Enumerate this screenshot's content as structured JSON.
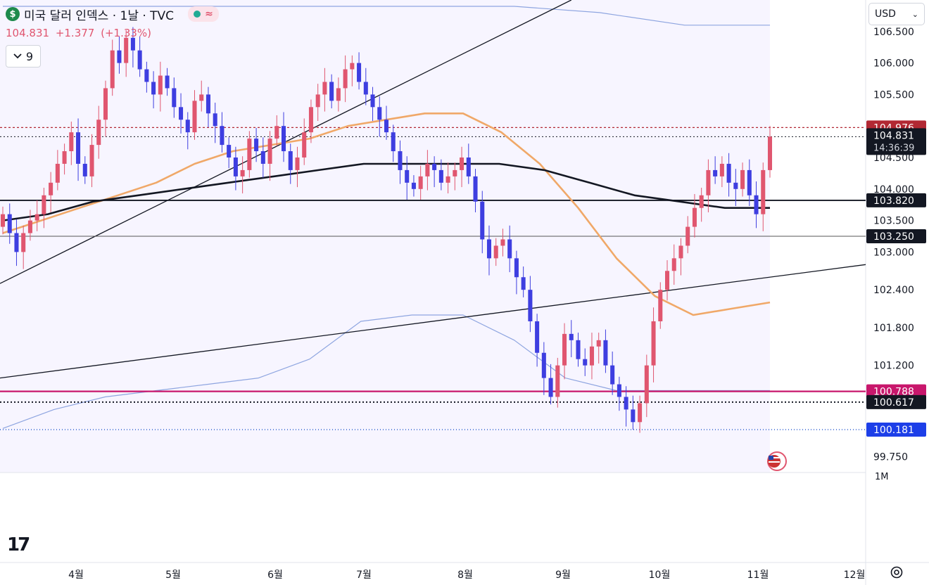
{
  "header": {
    "symbol_icon": "dollar-icon",
    "title": "미국 달러 인덱스 · 1날 · TVC",
    "status_icons": [
      "market-status-icon",
      "wave-icon"
    ],
    "last": "104.831",
    "change": "+1.377",
    "change_pct": "(+1.33%)",
    "indicator_count": "9"
  },
  "currency_select": {
    "value": "USD"
  },
  "colors": {
    "up": "#e0566f",
    "down": "#3e3ee0",
    "ma_orange": "#f0a868",
    "ma_black": "#131722",
    "band": "#8ea5e0",
    "magenta": "#c8176c"
  },
  "chart_data": {
    "type": "candlestick",
    "ylim": [
      99.5,
      107.0
    ],
    "price_axis_ticks": [
      "106.500",
      "106.000",
      "105.500",
      "104.000",
      "103.500",
      "103.000",
      "102.400",
      "101.800",
      "101.200",
      "99.750"
    ],
    "time_axis_ticks": [
      "4월",
      "5월",
      "6월",
      "7월",
      "8월",
      "9월",
      "10월",
      "11월",
      "12월"
    ],
    "price_labels": [
      {
        "value": "104.976",
        "style": "dotted-red"
      },
      {
        "value": "104.831",
        "sub": "14:36:39",
        "style": "current"
      },
      {
        "value": "103.820",
        "style": "black-line"
      },
      {
        "value": "103.250",
        "style": "gray-line"
      },
      {
        "value": "100.788",
        "style": "magenta-line"
      },
      {
        "value": "100.617",
        "style": "black-dotted"
      },
      {
        "value": "100.181",
        "style": "blue-dotted"
      }
    ],
    "partial_ticks": [
      "104.500",
      "1M"
    ],
    "close_series": [
      103.6,
      103.3,
      103.0,
      103.3,
      103.5,
      103.6,
      103.9,
      104.1,
      104.4,
      104.6,
      104.9,
      104.4,
      104.2,
      104.7,
      105.1,
      105.6,
      106.2,
      106.0,
      106.4,
      106.2,
      105.9,
      105.7,
      105.5,
      105.8,
      105.6,
      105.3,
      105.1,
      104.9,
      105.4,
      105.5,
      105.2,
      105.0,
      104.7,
      104.5,
      104.2,
      104.3,
      104.8,
      104.6,
      104.4,
      104.8,
      105.0,
      104.6,
      104.3,
      104.5,
      104.9,
      105.3,
      105.5,
      105.7,
      105.4,
      105.6,
      105.9,
      106.0,
      105.7,
      105.5,
      105.3,
      105.1,
      104.9,
      104.6,
      104.3,
      104.1,
      104.0,
      104.2,
      104.4,
      104.3,
      104.1,
      104.2,
      104.3,
      104.5,
      104.2,
      103.8,
      103.2,
      102.9,
      103.1,
      103.2,
      102.9,
      102.6,
      102.4,
      101.9,
      101.4,
      101.0,
      100.7,
      101.2,
      101.7,
      101.6,
      101.3,
      101.2,
      101.5,
      101.6,
      101.2,
      100.9,
      100.7,
      100.5,
      100.3,
      100.6,
      101.2,
      101.9,
      102.4,
      102.7,
      102.9,
      103.1,
      103.4,
      103.7,
      103.9,
      104.3,
      104.2,
      104.4,
      104.1,
      104.0,
      104.3,
      103.9,
      103.6,
      104.3,
      104.831
    ],
    "ma_orange": [
      103.3,
      103.5,
      103.7,
      103.9,
      104.1,
      104.4,
      104.6,
      104.7,
      104.8,
      105.0,
      105.1,
      105.2,
      105.2,
      104.9,
      104.4,
      103.7,
      102.9,
      102.3,
      102.0,
      102.1,
      102.2
    ],
    "ma_black": [
      103.5,
      103.6,
      103.8,
      103.9,
      104.0,
      104.1,
      104.2,
      104.3,
      104.4,
      104.4,
      104.4,
      104.4,
      104.3,
      104.1,
      103.9,
      103.8,
      103.7,
      103.7
    ],
    "band_upper": [
      106.9,
      106.9,
      106.9,
      106.9,
      106.9,
      106.9,
      106.9,
      106.8,
      106.6,
      106.6
    ],
    "band_lower": [
      100.2,
      100.5,
      100.7,
      100.8,
      100.9,
      101.0,
      101.3,
      101.9,
      102.0,
      102.0,
      101.6,
      101.0,
      100.8,
      100.8,
      100.8,
      100.8
    ],
    "trendlines": [
      {
        "name": "rising",
        "from": [
          0,
          102.5
        ],
        "to": [
          0.66,
          107.0
        ]
      },
      {
        "name": "long-rising",
        "from": [
          0,
          101.0
        ],
        "to": [
          1.0,
          102.8
        ]
      }
    ]
  }
}
